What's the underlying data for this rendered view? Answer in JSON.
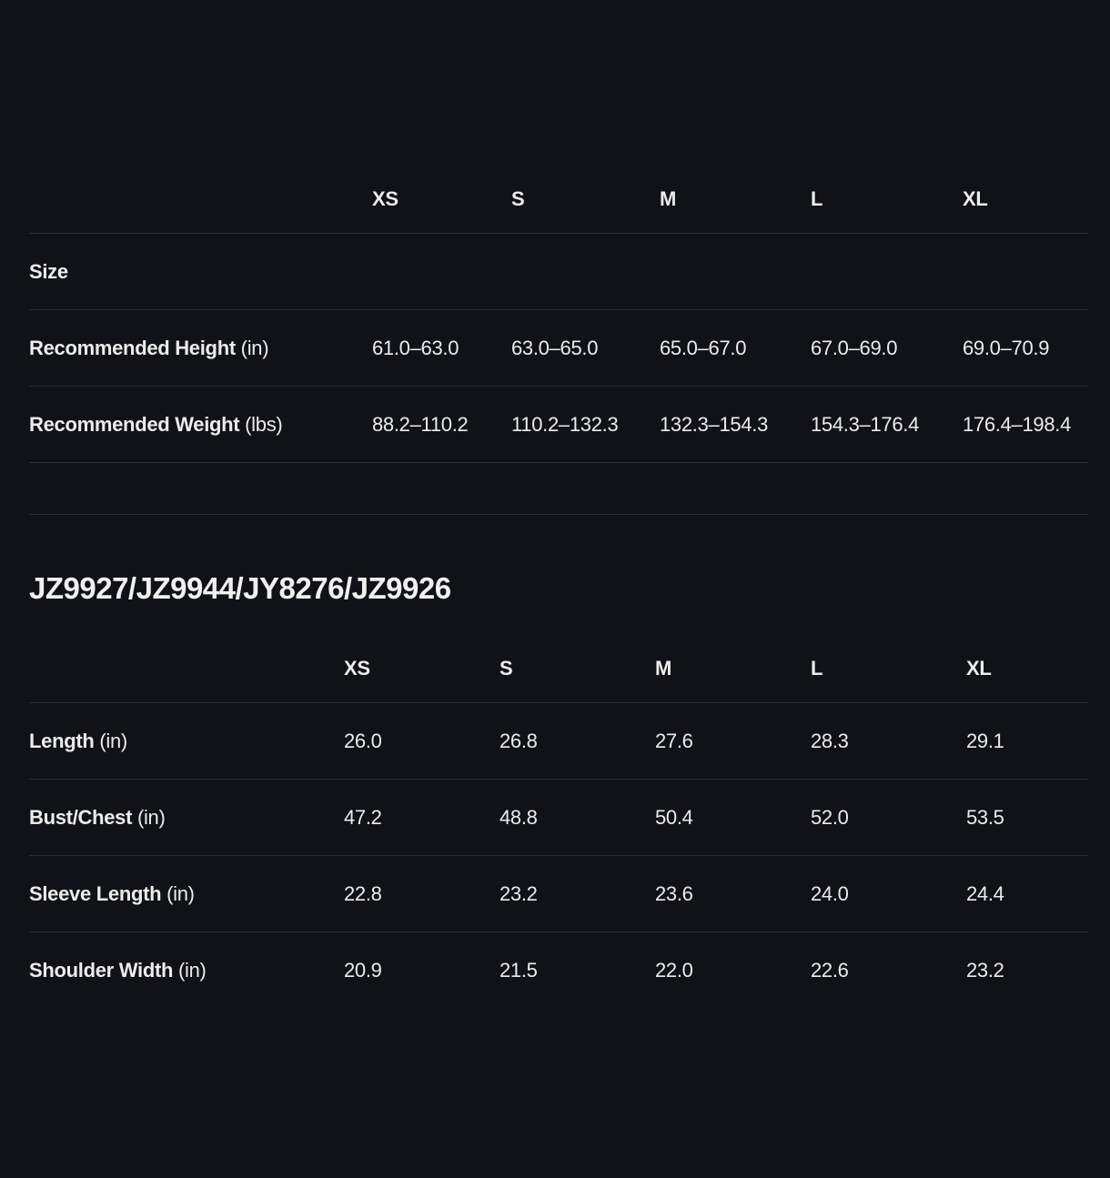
{
  "colors": {
    "background": "#111217",
    "text": "#ececec",
    "divider": "#2c2e33"
  },
  "table1": {
    "columns": [
      "XS",
      "S",
      "M",
      "L",
      "XL"
    ],
    "rows": [
      {
        "label": "Size",
        "unit": "",
        "values": [
          "",
          "",
          "",
          "",
          ""
        ]
      },
      {
        "label": "Recommended Height",
        "unit": "(in)",
        "values": [
          "61.0–63.0",
          "63.0–65.0",
          "65.0–67.0",
          "67.0–69.0",
          "69.0–70.9"
        ]
      },
      {
        "label": "Recommended Weight",
        "unit": "(lbs)",
        "values": [
          "88.2–110.2",
          "110.2–132.3",
          "132.3–154.3",
          "154.3–176.4",
          "176.4–198.4"
        ]
      }
    ]
  },
  "section2": {
    "title": "JZ9927/JZ9944/JY8276/JZ9926",
    "columns": [
      "XS",
      "S",
      "M",
      "L",
      "XL"
    ],
    "rows": [
      {
        "label": "Length",
        "unit": "(in)",
        "values": [
          "26.0",
          "26.8",
          "27.6",
          "28.3",
          "29.1"
        ]
      },
      {
        "label": "Bust/Chest",
        "unit": "(in)",
        "values": [
          "47.2",
          "48.8",
          "50.4",
          "52.0",
          "53.5"
        ]
      },
      {
        "label": "Sleeve Length",
        "unit": "(in)",
        "values": [
          "22.8",
          "23.2",
          "23.6",
          "24.0",
          "24.4"
        ]
      },
      {
        "label": "Shoulder Width",
        "unit": "(in)",
        "values": [
          "20.9",
          "21.5",
          "22.0",
          "22.6",
          "23.2"
        ]
      }
    ]
  }
}
